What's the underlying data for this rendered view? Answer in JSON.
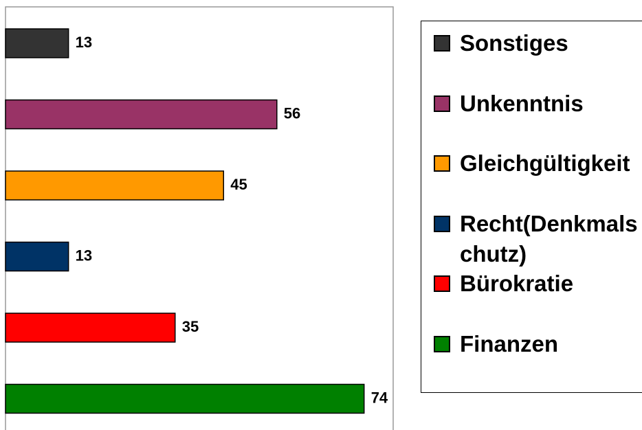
{
  "chart_data": {
    "type": "bar",
    "orientation": "horizontal",
    "series": [
      {
        "name": "Sonstiges",
        "color": "#333333",
        "values": [
          13
        ]
      },
      {
        "name": "Unkenntnis",
        "color": "#993366",
        "values": [
          56
        ]
      },
      {
        "name": "Gleichgültigkeit",
        "color": "#ff9900",
        "values": [
          45
        ]
      },
      {
        "name": "Recht(Denkmalschutz)",
        "color": "#003366",
        "values": [
          13
        ]
      },
      {
        "name": "Bürokratie",
        "color": "#ff0000",
        "values": [
          35
        ]
      },
      {
        "name": "Finanzen",
        "color": "#008000",
        "values": [
          74
        ]
      }
    ],
    "xlim": [
      0,
      80
    ],
    "legend": "right"
  }
}
